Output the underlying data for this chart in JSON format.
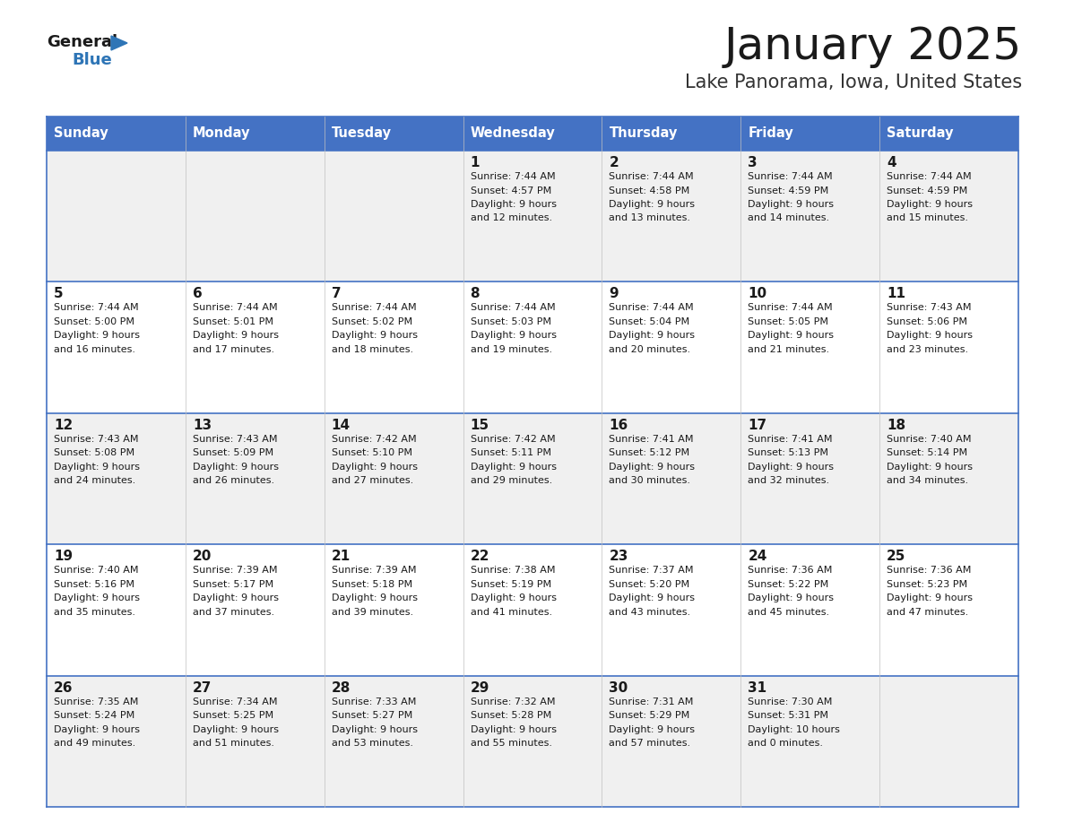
{
  "title": "January 2025",
  "subtitle": "Lake Panorama, Iowa, United States",
  "header_bg_color": "#4472C4",
  "header_text_color": "#FFFFFF",
  "weekdays": [
    "Sunday",
    "Monday",
    "Tuesday",
    "Wednesday",
    "Thursday",
    "Friday",
    "Saturday"
  ],
  "row_colors": [
    "#F0F0F0",
    "#FFFFFF"
  ],
  "cell_border_color": "#4472C4",
  "title_color": "#1a1a1a",
  "subtitle_color": "#333333",
  "logo_general_color": "#1a1a1a",
  "logo_blue_color": "#2E75B6",
  "days": [
    {
      "col": 0,
      "row": 0,
      "num": "",
      "sunrise": "",
      "sunset": "",
      "daylight_h": "",
      "daylight_m": ""
    },
    {
      "col": 1,
      "row": 0,
      "num": "",
      "sunrise": "",
      "sunset": "",
      "daylight_h": "",
      "daylight_m": ""
    },
    {
      "col": 2,
      "row": 0,
      "num": "",
      "sunrise": "",
      "sunset": "",
      "daylight_h": "",
      "daylight_m": ""
    },
    {
      "col": 3,
      "row": 0,
      "num": "1",
      "sunrise": "7:44 AM",
      "sunset": "4:57 PM",
      "daylight_h": "9 hours",
      "daylight_m": "and 12 minutes."
    },
    {
      "col": 4,
      "row": 0,
      "num": "2",
      "sunrise": "7:44 AM",
      "sunset": "4:58 PM",
      "daylight_h": "9 hours",
      "daylight_m": "and 13 minutes."
    },
    {
      "col": 5,
      "row": 0,
      "num": "3",
      "sunrise": "7:44 AM",
      "sunset": "4:59 PM",
      "daylight_h": "9 hours",
      "daylight_m": "and 14 minutes."
    },
    {
      "col": 6,
      "row": 0,
      "num": "4",
      "sunrise": "7:44 AM",
      "sunset": "4:59 PM",
      "daylight_h": "9 hours",
      "daylight_m": "and 15 minutes."
    },
    {
      "col": 0,
      "row": 1,
      "num": "5",
      "sunrise": "7:44 AM",
      "sunset": "5:00 PM",
      "daylight_h": "9 hours",
      "daylight_m": "and 16 minutes."
    },
    {
      "col": 1,
      "row": 1,
      "num": "6",
      "sunrise": "7:44 AM",
      "sunset": "5:01 PM",
      "daylight_h": "9 hours",
      "daylight_m": "and 17 minutes."
    },
    {
      "col": 2,
      "row": 1,
      "num": "7",
      "sunrise": "7:44 AM",
      "sunset": "5:02 PM",
      "daylight_h": "9 hours",
      "daylight_m": "and 18 minutes."
    },
    {
      "col": 3,
      "row": 1,
      "num": "8",
      "sunrise": "7:44 AM",
      "sunset": "5:03 PM",
      "daylight_h": "9 hours",
      "daylight_m": "and 19 minutes."
    },
    {
      "col": 4,
      "row": 1,
      "num": "9",
      "sunrise": "7:44 AM",
      "sunset": "5:04 PM",
      "daylight_h": "9 hours",
      "daylight_m": "and 20 minutes."
    },
    {
      "col": 5,
      "row": 1,
      "num": "10",
      "sunrise": "7:44 AM",
      "sunset": "5:05 PM",
      "daylight_h": "9 hours",
      "daylight_m": "and 21 minutes."
    },
    {
      "col": 6,
      "row": 1,
      "num": "11",
      "sunrise": "7:43 AM",
      "sunset": "5:06 PM",
      "daylight_h": "9 hours",
      "daylight_m": "and 23 minutes."
    },
    {
      "col": 0,
      "row": 2,
      "num": "12",
      "sunrise": "7:43 AM",
      "sunset": "5:08 PM",
      "daylight_h": "9 hours",
      "daylight_m": "and 24 minutes."
    },
    {
      "col": 1,
      "row": 2,
      "num": "13",
      "sunrise": "7:43 AM",
      "sunset": "5:09 PM",
      "daylight_h": "9 hours",
      "daylight_m": "and 26 minutes."
    },
    {
      "col": 2,
      "row": 2,
      "num": "14",
      "sunrise": "7:42 AM",
      "sunset": "5:10 PM",
      "daylight_h": "9 hours",
      "daylight_m": "and 27 minutes."
    },
    {
      "col": 3,
      "row": 2,
      "num": "15",
      "sunrise": "7:42 AM",
      "sunset": "5:11 PM",
      "daylight_h": "9 hours",
      "daylight_m": "and 29 minutes."
    },
    {
      "col": 4,
      "row": 2,
      "num": "16",
      "sunrise": "7:41 AM",
      "sunset": "5:12 PM",
      "daylight_h": "9 hours",
      "daylight_m": "and 30 minutes."
    },
    {
      "col": 5,
      "row": 2,
      "num": "17",
      "sunrise": "7:41 AM",
      "sunset": "5:13 PM",
      "daylight_h": "9 hours",
      "daylight_m": "and 32 minutes."
    },
    {
      "col": 6,
      "row": 2,
      "num": "18",
      "sunrise": "7:40 AM",
      "sunset": "5:14 PM",
      "daylight_h": "9 hours",
      "daylight_m": "and 34 minutes."
    },
    {
      "col": 0,
      "row": 3,
      "num": "19",
      "sunrise": "7:40 AM",
      "sunset": "5:16 PM",
      "daylight_h": "9 hours",
      "daylight_m": "and 35 minutes."
    },
    {
      "col": 1,
      "row": 3,
      "num": "20",
      "sunrise": "7:39 AM",
      "sunset": "5:17 PM",
      "daylight_h": "9 hours",
      "daylight_m": "and 37 minutes."
    },
    {
      "col": 2,
      "row": 3,
      "num": "21",
      "sunrise": "7:39 AM",
      "sunset": "5:18 PM",
      "daylight_h": "9 hours",
      "daylight_m": "and 39 minutes."
    },
    {
      "col": 3,
      "row": 3,
      "num": "22",
      "sunrise": "7:38 AM",
      "sunset": "5:19 PM",
      "daylight_h": "9 hours",
      "daylight_m": "and 41 minutes."
    },
    {
      "col": 4,
      "row": 3,
      "num": "23",
      "sunrise": "7:37 AM",
      "sunset": "5:20 PM",
      "daylight_h": "9 hours",
      "daylight_m": "and 43 minutes."
    },
    {
      "col": 5,
      "row": 3,
      "num": "24",
      "sunrise": "7:36 AM",
      "sunset": "5:22 PM",
      "daylight_h": "9 hours",
      "daylight_m": "and 45 minutes."
    },
    {
      "col": 6,
      "row": 3,
      "num": "25",
      "sunrise": "7:36 AM",
      "sunset": "5:23 PM",
      "daylight_h": "9 hours",
      "daylight_m": "and 47 minutes."
    },
    {
      "col": 0,
      "row": 4,
      "num": "26",
      "sunrise": "7:35 AM",
      "sunset": "5:24 PM",
      "daylight_h": "9 hours",
      "daylight_m": "and 49 minutes."
    },
    {
      "col": 1,
      "row": 4,
      "num": "27",
      "sunrise": "7:34 AM",
      "sunset": "5:25 PM",
      "daylight_h": "9 hours",
      "daylight_m": "and 51 minutes."
    },
    {
      "col": 2,
      "row": 4,
      "num": "28",
      "sunrise": "7:33 AM",
      "sunset": "5:27 PM",
      "daylight_h": "9 hours",
      "daylight_m": "and 53 minutes."
    },
    {
      "col": 3,
      "row": 4,
      "num": "29",
      "sunrise": "7:32 AM",
      "sunset": "5:28 PM",
      "daylight_h": "9 hours",
      "daylight_m": "and 55 minutes."
    },
    {
      "col": 4,
      "row": 4,
      "num": "30",
      "sunrise": "7:31 AM",
      "sunset": "5:29 PM",
      "daylight_h": "9 hours",
      "daylight_m": "and 57 minutes."
    },
    {
      "col": 5,
      "row": 4,
      "num": "31",
      "sunrise": "7:30 AM",
      "sunset": "5:31 PM",
      "daylight_h": "10 hours",
      "daylight_m": "and 0 minutes."
    },
    {
      "col": 6,
      "row": 4,
      "num": "",
      "sunrise": "",
      "sunset": "",
      "daylight_h": "",
      "daylight_m": ""
    }
  ]
}
